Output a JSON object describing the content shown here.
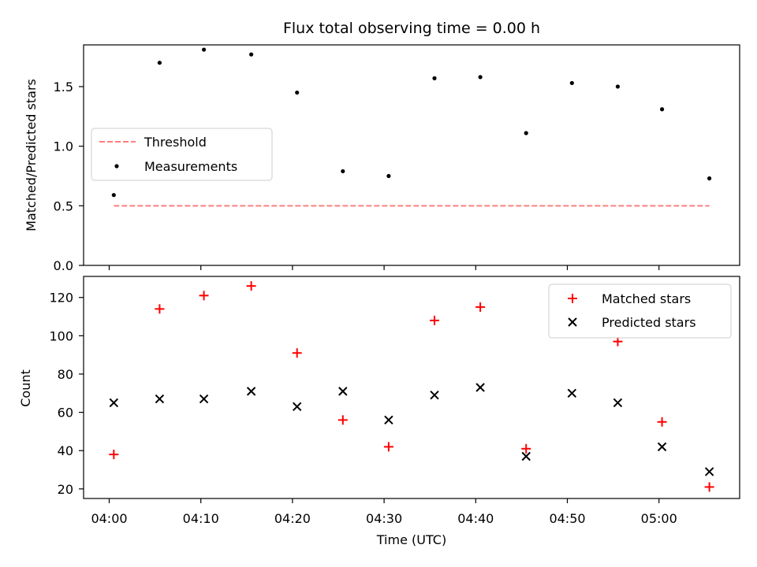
{
  "chart_data": [
    {
      "type": "scatter",
      "title": "Flux total observing time = 0.00 h",
      "xlabel": "",
      "ylabel": "Matched/Predicted stars",
      "ylim": [
        0,
        1.85
      ],
      "yticks": [
        "0.0",
        "0.5",
        "1.0",
        "1.5"
      ],
      "legend_position": "center-left",
      "x": [
        "04:00:30",
        "04:05:30",
        "04:10:20",
        "04:15:30",
        "04:20:30",
        "04:25:30",
        "04:30:30",
        "04:35:30",
        "04:40:30",
        "04:45:30",
        "04:50:30",
        "04:55:30",
        "05:00:20",
        "05:05:30"
      ],
      "series": [
        {
          "name": "Threshold",
          "style": "dashed-line",
          "color": "#ff7f7f",
          "values": [
            0.5,
            0.5
          ]
        },
        {
          "name": "Measurements",
          "style": "dot",
          "color": "#000000",
          "values": [
            0.59,
            1.7,
            1.81,
            1.77,
            1.45,
            0.79,
            0.75,
            1.57,
            1.58,
            1.11,
            1.53,
            1.5,
            1.31,
            0.73
          ]
        }
      ]
    },
    {
      "type": "scatter",
      "title": "",
      "xlabel": "Time (UTC)",
      "ylabel": "Count",
      "ylim": [
        15,
        131
      ],
      "yticks": [
        "20",
        "40",
        "60",
        "80",
        "100",
        "120"
      ],
      "xticks": [
        "04:00",
        "04:10",
        "04:20",
        "04:30",
        "04:40",
        "04:50",
        "05:00"
      ],
      "legend_position": "top-right",
      "x": [
        "04:00:30",
        "04:05:30",
        "04:10:20",
        "04:15:30",
        "04:20:30",
        "04:25:30",
        "04:30:30",
        "04:35:30",
        "04:40:30",
        "04:45:30",
        "04:50:30",
        "04:55:30",
        "05:00:20",
        "05:05:30"
      ],
      "series": [
        {
          "name": "Matched stars",
          "style": "plus",
          "color": "#ff0000",
          "values": [
            38,
            114,
            121,
            126,
            91,
            56,
            42,
            108,
            115,
            41,
            null,
            97,
            55,
            21
          ]
        },
        {
          "name": "Predicted stars",
          "style": "x",
          "color": "#000000",
          "values": [
            65,
            67,
            67,
            71,
            63,
            71,
            56,
            69,
            73,
            37,
            70,
            65,
            42,
            29
          ]
        }
      ]
    }
  ]
}
